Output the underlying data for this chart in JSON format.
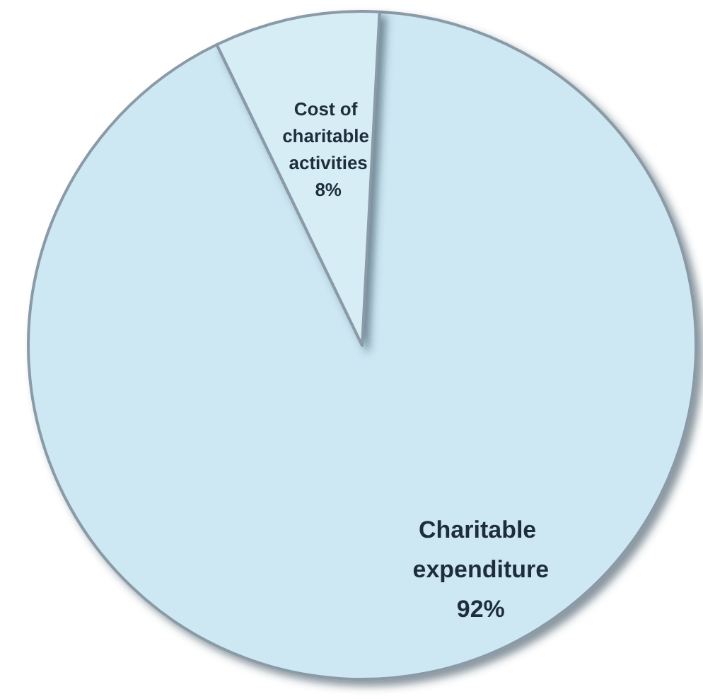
{
  "chart_data": {
    "type": "pie",
    "categories": [
      "Charitable expenditure",
      "Cost of charitable activities"
    ],
    "values": [
      92,
      8
    ],
    "colors": [
      "#cde8f3",
      "#d6edf6"
    ],
    "value_labels": [
      "92%",
      "8%"
    ]
  }
}
